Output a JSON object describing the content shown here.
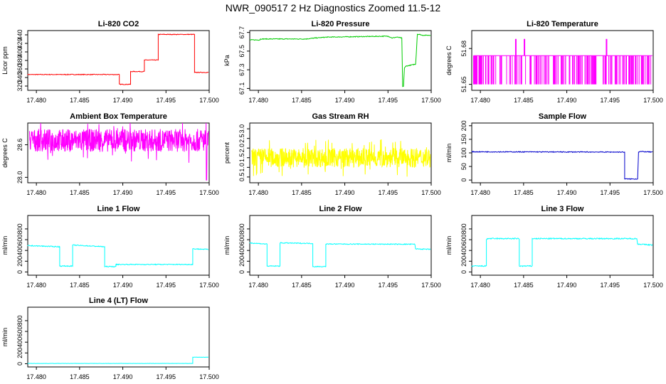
{
  "page_title": "NWR_090517  2 Hz Diagnostics Zoomed 11.5-12",
  "chart_data": [
    {
      "type": "line",
      "title": "Li-820 CO2",
      "ylabel": "Licor ppm",
      "color": "#ff0000",
      "xlim": [
        17.479,
        17.5
      ],
      "ylim": [
        310,
        450
      ],
      "xticks": [
        "17.480",
        "17.485",
        "17.490",
        "17.495",
        "17.500"
      ],
      "yticks": [
        "320",
        "340",
        "360",
        "380",
        "400",
        "420",
        "440"
      ],
      "noise": 0.8,
      "x": [
        17.479,
        17.4896,
        17.4896,
        17.4909,
        17.4909,
        17.4925,
        17.4925,
        17.4941,
        17.4941,
        17.4983,
        17.4983,
        17.4999
      ],
      "y": [
        347,
        347,
        324,
        324,
        354,
        354,
        381,
        381,
        441,
        441,
        352,
        352
      ]
    },
    {
      "type": "line",
      "title": "Li-820 Pressure",
      "ylabel": "kPa",
      "color": "#00cc00",
      "xlim": [
        17.479,
        17.5
      ],
      "ylim": [
        67.08,
        67.72
      ],
      "xticks": [
        "17.480",
        "17.485",
        "17.490",
        "17.495",
        "17.500"
      ],
      "yticks": [
        "67.1",
        "67.3",
        "67.5",
        "67.7"
      ],
      "noise": 0.004,
      "x": [
        17.479,
        17.4802,
        17.4802,
        17.4855,
        17.4865,
        17.488,
        17.495,
        17.4955,
        17.496,
        17.4966,
        17.4967,
        17.4968,
        17.4969,
        17.4971,
        17.4982,
        17.4984,
        17.4986,
        17.499,
        17.4999
      ],
      "y": [
        67.62,
        67.62,
        67.63,
        67.63,
        67.64,
        67.65,
        67.66,
        67.64,
        67.65,
        67.64,
        67.12,
        67.12,
        67.32,
        67.34,
        67.36,
        67.68,
        67.68,
        67.67,
        67.67
      ]
    },
    {
      "type": "line",
      "title": "Li-820 Temperature",
      "ylabel": "degrees C",
      "color": "#ff00ff",
      "xlim": [
        17.479,
        17.5
      ],
      "ylim": [
        51.645,
        51.695
      ],
      "xticks": [
        "17.480",
        "17.485",
        "17.490",
        "17.495",
        "17.500"
      ],
      "yticks": [
        "51.65",
        "51.68"
      ],
      "levels": [
        51.65,
        51.674
      ],
      "spikes": [
        17.4841,
        17.4851,
        17.4946
      ],
      "spike_top": 51.688
    },
    {
      "type": "line",
      "title": "Ambient Box Temperature",
      "ylabel": "degrees C",
      "color": "#ff00ff",
      "xlim": [
        17.479,
        17.5
      ],
      "ylim": [
        27.9,
        29.0
      ],
      "xticks": [
        "17.480",
        "17.485",
        "17.490",
        "17.495",
        "17.500"
      ],
      "yticks": [
        "28.0",
        "28.6"
      ],
      "base": 28.68,
      "spread": 0.42,
      "drop_x": 17.4997,
      "drop_y": 27.95
    },
    {
      "type": "line",
      "title": "Gas Stream RH",
      "ylabel": "percent",
      "color": "#ffff00",
      "xlim": [
        17.479,
        17.5
      ],
      "ylim": [
        0.2,
        3.3
      ],
      "xticks": [
        "17.480",
        "17.485",
        "17.490",
        "17.495",
        "17.500"
      ],
      "yticks": [
        "0.5",
        "1.0",
        "1.5",
        "2.0",
        "2.5",
        "3.0"
      ],
      "base": 1.5,
      "spread": 1.0
    },
    {
      "type": "line",
      "title": "Sample Flow",
      "ylabel": "ml/min",
      "color": "#0000cc",
      "xlim": [
        17.479,
        17.5
      ],
      "ylim": [
        -10,
        210
      ],
      "xticks": [
        "17.480",
        "17.485",
        "17.490",
        "17.495",
        "17.500"
      ],
      "yticks": [
        "0",
        "50",
        "100",
        "150",
        "200"
      ],
      "noise": 1.5,
      "x": [
        17.479,
        17.4965,
        17.4967,
        17.4967,
        17.4982,
        17.4983,
        17.4985,
        17.4999
      ],
      "y": [
        104,
        103,
        103,
        4,
        4,
        103,
        105,
        103
      ]
    },
    {
      "type": "line",
      "title": "Line 1 Flow",
      "ylabel": "ml/min",
      "color": "#00ffff",
      "xlim": [
        17.479,
        17.5
      ],
      "ylim": [
        -60,
        1050
      ],
      "xticks": [
        "17.480",
        "17.485",
        "17.490",
        "17.495",
        "17.500"
      ],
      "yticks": [
        "0",
        "200",
        "400",
        "600",
        "800"
      ],
      "noise": 8,
      "x": [
        17.479,
        17.4825,
        17.4827,
        17.4827,
        17.4842,
        17.4842,
        17.4878,
        17.4879,
        17.4879,
        17.4892,
        17.4892,
        17.4981,
        17.4981,
        17.4999
      ],
      "y": [
        490,
        470,
        470,
        110,
        110,
        500,
        470,
        470,
        100,
        100,
        140,
        140,
        430,
        420
      ]
    },
    {
      "type": "line",
      "title": "Line 2 Flow",
      "ylabel": "ml/min",
      "color": "#00ffff",
      "xlim": [
        17.479,
        17.5
      ],
      "ylim": [
        -60,
        1050
      ],
      "xticks": [
        "17.480",
        "17.485",
        "17.490",
        "17.495",
        "17.500"
      ],
      "yticks": [
        "0",
        "200",
        "400",
        "600",
        "800"
      ],
      "noise": 8,
      "x": [
        17.479,
        17.4808,
        17.481,
        17.481,
        17.4825,
        17.4825,
        17.4862,
        17.4863,
        17.4863,
        17.4878,
        17.4878,
        17.4981,
        17.4982,
        17.4999
      ],
      "y": [
        540,
        520,
        520,
        110,
        110,
        540,
        530,
        530,
        100,
        100,
        520,
        515,
        430,
        420
      ]
    },
    {
      "type": "line",
      "title": "Line 3 Flow",
      "ylabel": "ml/min",
      "color": "#00ffff",
      "xlim": [
        17.479,
        17.5
      ],
      "ylim": [
        -60,
        1050
      ],
      "xticks": [
        "17.480",
        "17.485",
        "17.490",
        "17.495",
        "17.500"
      ],
      "yticks": [
        "0",
        "200",
        "400",
        "600",
        "800"
      ],
      "noise": 10,
      "x": [
        17.479,
        17.4807,
        17.4807,
        17.4808,
        17.4844,
        17.4845,
        17.4845,
        17.486,
        17.486,
        17.4981,
        17.4982,
        17.4999
      ],
      "y": [
        110,
        110,
        600,
        620,
        620,
        610,
        110,
        110,
        620,
        620,
        520,
        500
      ]
    },
    {
      "type": "line",
      "title": "Line 4 (LT) Flow",
      "ylabel": "ml/min",
      "color": "#00ffff",
      "xlim": [
        17.479,
        17.5
      ],
      "ylim": [
        -60,
        1050
      ],
      "xticks": [
        "17.480",
        "17.485",
        "17.490",
        "17.495",
        "17.500"
      ],
      "yticks": [
        "0",
        "200",
        "400",
        "600",
        "800"
      ],
      "noise": 2,
      "x": [
        17.479,
        17.4981,
        17.4981,
        17.4999
      ],
      "y": [
        5,
        5,
        120,
        120
      ]
    }
  ]
}
